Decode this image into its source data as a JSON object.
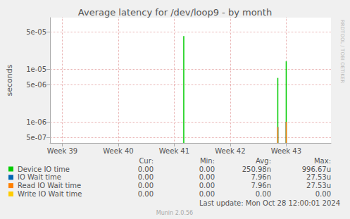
{
  "chart_data": {
    "type": "line",
    "title": "Average latency for /dev/loop9 - by month",
    "y_label": "seconds",
    "x": [
      41.17,
      42.85,
      43.0
    ],
    "xlim": [
      38.78,
      43.8
    ],
    "xticks": [
      {
        "value": 39,
        "label": "Week 39"
      },
      {
        "value": 40,
        "label": "Week 40"
      },
      {
        "value": 41,
        "label": "Week 41"
      },
      {
        "value": 42,
        "label": "Week 42"
      },
      {
        "value": 43,
        "label": "Week 43"
      }
    ],
    "ylim": [
      4e-07,
      9.4e-05
    ],
    "yticks": [
      {
        "value": 5e-07,
        "label": "5e-07"
      },
      {
        "value": 1e-06,
        "label": "1e-06"
      },
      {
        "value": 5e-06,
        "label": "5e-06"
      },
      {
        "value": 1e-05,
        "label": "1e-05"
      },
      {
        "value": 5e-05,
        "label": "5e-05"
      }
    ],
    "log": "y",
    "grid": true,
    "series": [
      {
        "name": "Device IO time",
        "color": "#00cc00",
        "values": [
          4.2e-05,
          6.8e-06,
          1.4e-05
        ]
      },
      {
        "name": "IO Wait time",
        "color": "#0066b3",
        "values": [
          null,
          8e-07,
          1e-06
        ]
      },
      {
        "name": "Read IO Wait time",
        "color": "#ff8000",
        "values": [
          null,
          8e-07,
          1e-06
        ]
      },
      {
        "name": "Write IO Wait time",
        "color": "#ffcc00",
        "values": [
          null,
          null,
          null
        ]
      }
    ]
  },
  "legend_table": {
    "headers": [
      "Cur:",
      "Min:",
      "Avg:",
      "Max:"
    ],
    "rows": [
      [
        "0.00",
        "0.00",
        "250.98n",
        "996.67u"
      ],
      [
        "0.00",
        "0.00",
        "7.96n",
        "27.53u"
      ],
      [
        "0.00",
        "0.00",
        "7.96n",
        "27.53u"
      ],
      [
        "0.00",
        "0.00",
        "0.00",
        "0.00"
      ]
    ]
  },
  "footer": {
    "last_update": "Last update: Mon Oct 28 12:00:01 2024",
    "generator": "Munin 2.0.56",
    "watermark": "RRDTOOL / TOBI OETIKER"
  }
}
